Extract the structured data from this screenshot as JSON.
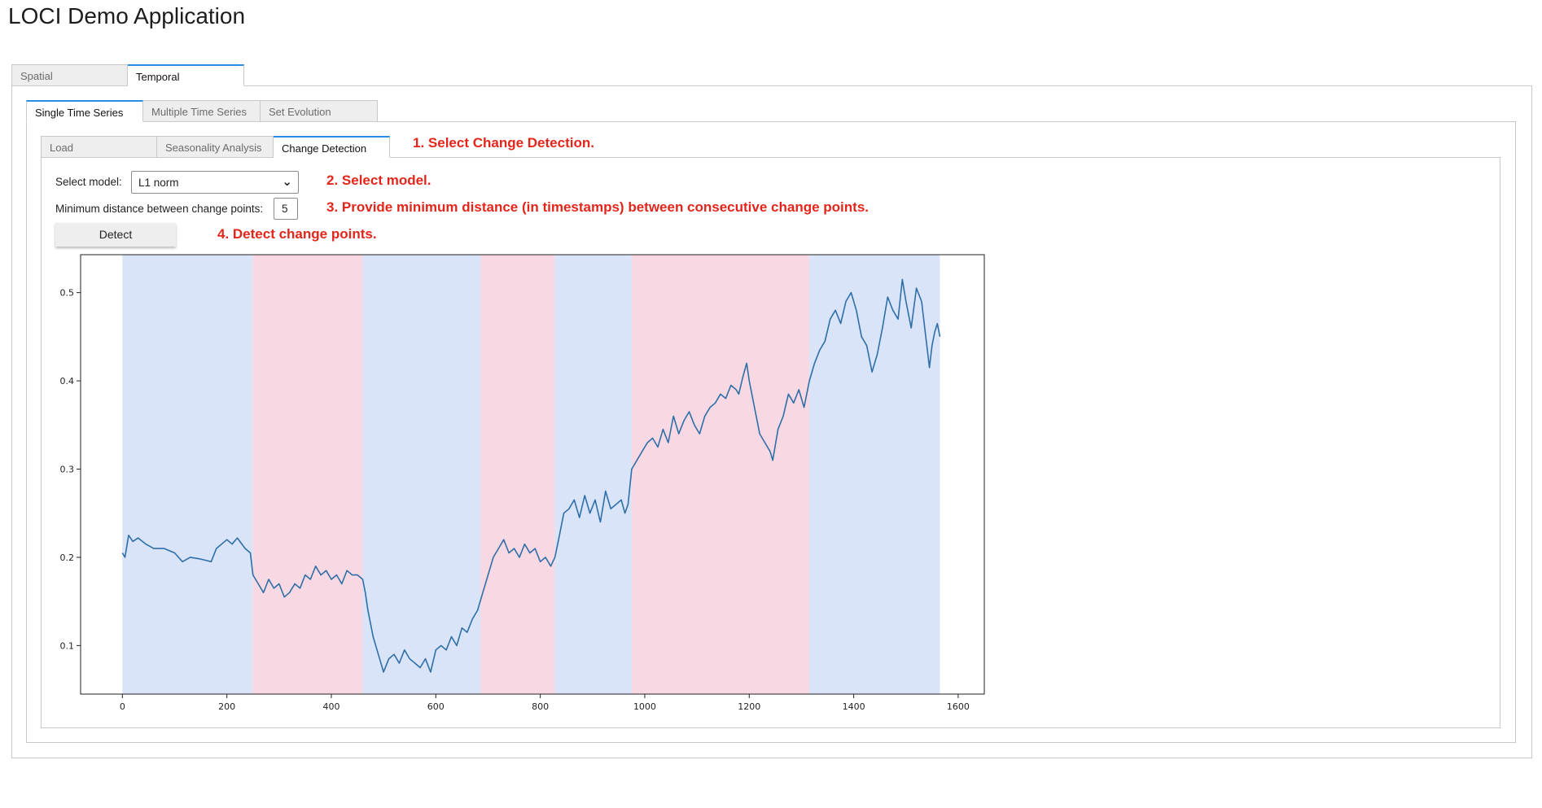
{
  "app": {
    "title": "LOCI Demo Application"
  },
  "top_tabs": [
    "Spatial",
    "Temporal"
  ],
  "sub_tabs": [
    "Single Time Series",
    "Multiple Time Series",
    "Set Evolution"
  ],
  "inner_tabs": [
    "Load",
    "Seasonality Analysis",
    "Change Detection"
  ],
  "form": {
    "model_label": "Select model:",
    "model_value": "L1 norm",
    "min_dist_label": "Minimum distance between change points:",
    "min_dist_value": "5",
    "detect_label": "Detect"
  },
  "notes": {
    "step1": "1. Select Change Detection.",
    "step2": "2. Select model.",
    "step3": "3. Provide minimum distance (in timestamps) between consecutive change points.",
    "step4": "4. Detect change points."
  },
  "colors": {
    "accent": "#2b8ce6",
    "note": "#e3261b",
    "segment_blue": "#d9e4f8",
    "segment_pink": "#f8d9e3",
    "series_line": "#2f6fa8"
  },
  "chart_data": {
    "type": "line",
    "title": "",
    "xlabel": "",
    "ylabel": "",
    "xlim": [
      -80,
      1650
    ],
    "ylim": [
      0.045,
      0.543
    ],
    "x_ticks": [
      0,
      200,
      400,
      600,
      800,
      1000,
      1200,
      1400,
      1600
    ],
    "y_ticks": [
      0.1,
      0.2,
      0.3,
      0.4,
      0.5
    ],
    "grid": false,
    "segments": [
      {
        "start": 0,
        "end": 250,
        "color": "blue"
      },
      {
        "start": 250,
        "end": 460,
        "color": "pink"
      },
      {
        "start": 460,
        "end": 686,
        "color": "blue"
      },
      {
        "start": 686,
        "end": 828,
        "color": "pink"
      },
      {
        "start": 828,
        "end": 975,
        "color": "blue"
      },
      {
        "start": 975,
        "end": 1315,
        "color": "pink"
      },
      {
        "start": 1315,
        "end": 1565,
        "color": "blue"
      }
    ],
    "series": [
      {
        "x": [
          0,
          5,
          12,
          20,
          30,
          45,
          60,
          80,
          100,
          115,
          130,
          150,
          170,
          180,
          200,
          210,
          220,
          235,
          245,
          250,
          260,
          270,
          280,
          290,
          300,
          310,
          320,
          330,
          340,
          350,
          360,
          370,
          380,
          390,
          400,
          410,
          420,
          430,
          440,
          450,
          460,
          465,
          470,
          480,
          490,
          500,
          510,
          520,
          530,
          540,
          550,
          560,
          570,
          580,
          590,
          600,
          610,
          620,
          630,
          640,
          650,
          660,
          670,
          680,
          690,
          700,
          710,
          720,
          730,
          740,
          750,
          760,
          770,
          780,
          790,
          800,
          810,
          820,
          828,
          835,
          845,
          855,
          865,
          875,
          885,
          895,
          905,
          915,
          925,
          935,
          945,
          955,
          962,
          968,
          975,
          985,
          995,
          1005,
          1015,
          1025,
          1035,
          1045,
          1055,
          1065,
          1075,
          1085,
          1095,
          1105,
          1115,
          1125,
          1135,
          1145,
          1155,
          1165,
          1175,
          1180,
          1188,
          1195,
          1200,
          1210,
          1220,
          1230,
          1240,
          1245,
          1255,
          1265,
          1275,
          1285,
          1295,
          1305,
          1315,
          1325,
          1335,
          1345,
          1355,
          1365,
          1375,
          1385,
          1395,
          1405,
          1415,
          1425,
          1435,
          1445,
          1455,
          1465,
          1475,
          1485,
          1493,
          1500,
          1510,
          1520,
          1530,
          1538,
          1545,
          1550,
          1555,
          1560,
          1565
        ],
        "y": [
          0.205,
          0.2,
          0.225,
          0.218,
          0.222,
          0.215,
          0.21,
          0.21,
          0.205,
          0.195,
          0.2,
          0.198,
          0.195,
          0.21,
          0.22,
          0.215,
          0.222,
          0.21,
          0.205,
          0.18,
          0.17,
          0.16,
          0.175,
          0.165,
          0.17,
          0.155,
          0.16,
          0.17,
          0.165,
          0.18,
          0.175,
          0.19,
          0.18,
          0.185,
          0.175,
          0.18,
          0.17,
          0.185,
          0.18,
          0.18,
          0.175,
          0.16,
          0.14,
          0.11,
          0.09,
          0.07,
          0.085,
          0.09,
          0.08,
          0.095,
          0.085,
          0.08,
          0.075,
          0.085,
          0.07,
          0.095,
          0.1,
          0.095,
          0.11,
          0.1,
          0.12,
          0.115,
          0.13,
          0.14,
          0.16,
          0.18,
          0.2,
          0.21,
          0.22,
          0.205,
          0.21,
          0.2,
          0.215,
          0.205,
          0.21,
          0.195,
          0.2,
          0.19,
          0.2,
          0.22,
          0.25,
          0.255,
          0.265,
          0.245,
          0.27,
          0.25,
          0.265,
          0.24,
          0.275,
          0.255,
          0.26,
          0.265,
          0.25,
          0.26,
          0.3,
          0.31,
          0.32,
          0.33,
          0.335,
          0.325,
          0.345,
          0.33,
          0.36,
          0.34,
          0.355,
          0.365,
          0.35,
          0.34,
          0.36,
          0.37,
          0.375,
          0.385,
          0.38,
          0.395,
          0.39,
          0.385,
          0.405,
          0.42,
          0.4,
          0.37,
          0.34,
          0.33,
          0.32,
          0.31,
          0.345,
          0.36,
          0.385,
          0.375,
          0.39,
          0.37,
          0.4,
          0.42,
          0.435,
          0.445,
          0.47,
          0.48,
          0.465,
          0.49,
          0.5,
          0.48,
          0.45,
          0.44,
          0.41,
          0.43,
          0.46,
          0.495,
          0.48,
          0.47,
          0.515,
          0.49,
          0.46,
          0.505,
          0.49,
          0.45,
          0.415,
          0.44,
          0.455,
          0.465,
          0.45
        ]
      }
    ]
  }
}
